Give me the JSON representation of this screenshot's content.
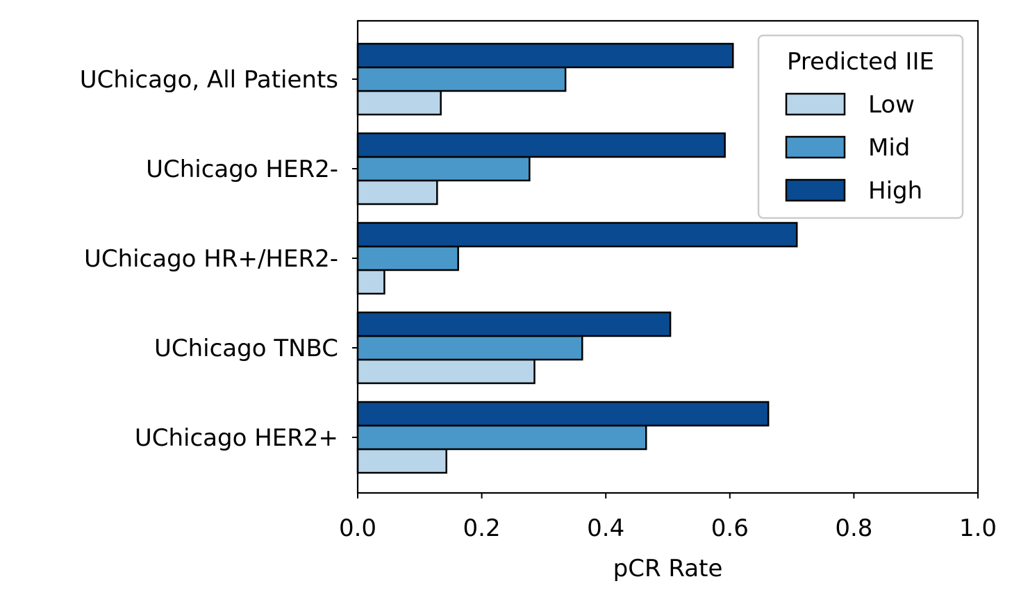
{
  "chart_data": {
    "type": "bar",
    "orientation": "horizontal",
    "categories": [
      "UChicago, All Patients",
      "UChicago HER2-",
      "UChicago HR+/HER2-",
      "UChicago TNBC",
      "UChicago HER2+"
    ],
    "series": [
      {
        "name": "Low",
        "color": "#b9d5ea",
        "values": [
          0.134,
          0.128,
          0.043,
          0.285,
          0.143
        ]
      },
      {
        "name": "Mid",
        "color": "#4a98c9",
        "values": [
          0.335,
          0.277,
          0.162,
          0.362,
          0.465
        ]
      },
      {
        "name": "High",
        "color": "#0a4a90",
        "values": [
          0.605,
          0.592,
          0.708,
          0.504,
          0.662
        ]
      }
    ],
    "xlabel": "pCR Rate",
    "ylabel": "",
    "xlim": [
      0.0,
      1.0
    ],
    "xticks": [
      "0.0",
      "0.2",
      "0.4",
      "0.6",
      "0.8",
      "1.0"
    ],
    "legend": {
      "title": "Predicted IIE",
      "position": "top-right"
    },
    "grid": false
  }
}
